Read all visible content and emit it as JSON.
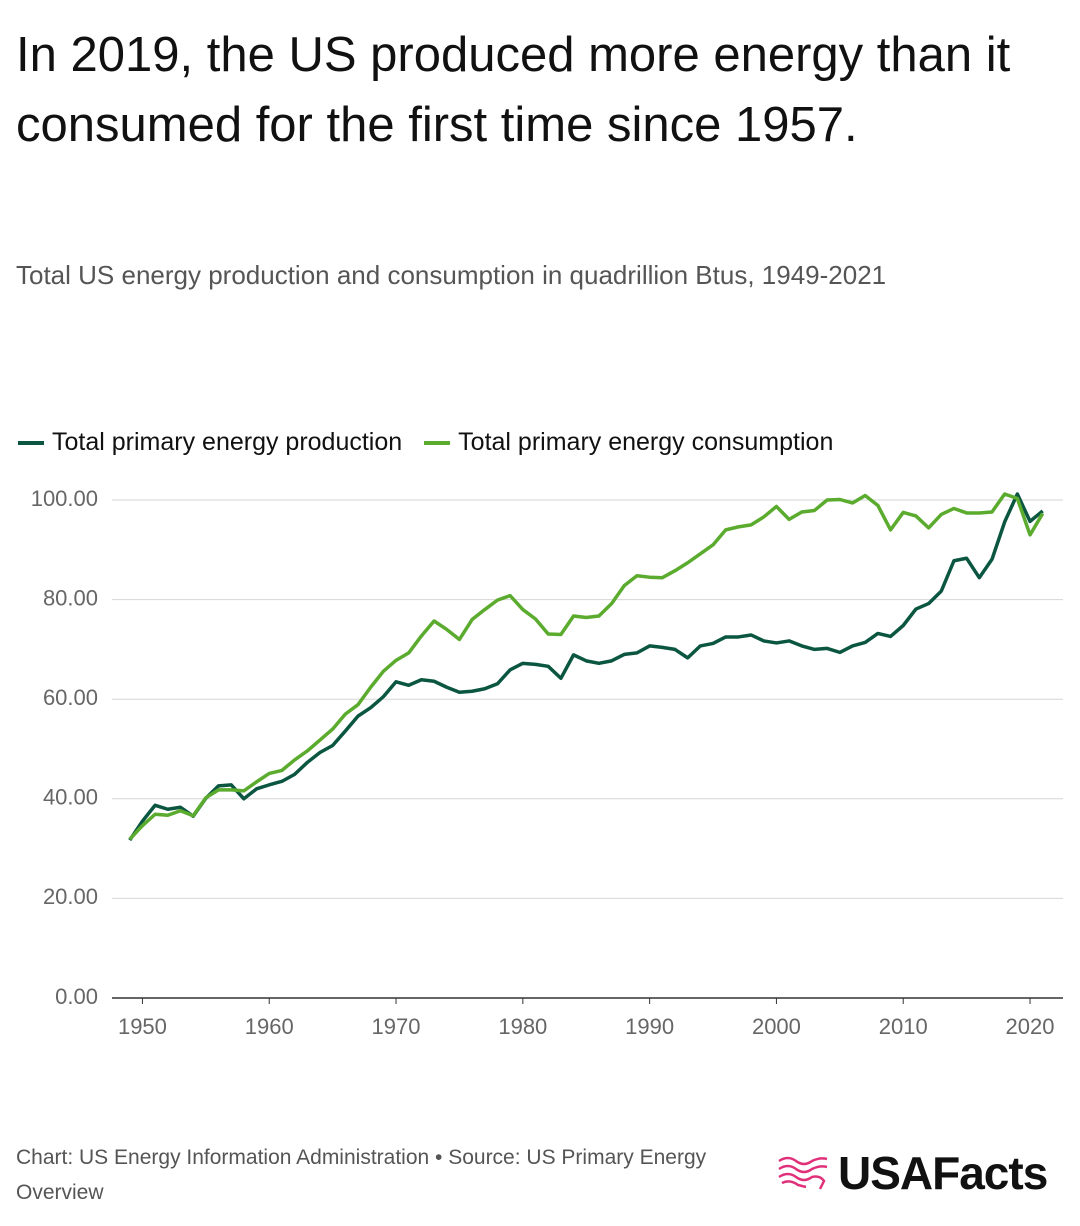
{
  "chart_data": {
    "type": "line",
    "title": "In 2019, the US produced more energy than it consumed for the first time since 1957.",
    "subtitle": "Total US energy production and consumption in quadrillion Btus, 1949-2021",
    "x": [
      1949,
      1950,
      1951,
      1952,
      1953,
      1954,
      1955,
      1956,
      1957,
      1958,
      1959,
      1960,
      1961,
      1962,
      1963,
      1964,
      1965,
      1966,
      1967,
      1968,
      1969,
      1970,
      1971,
      1972,
      1973,
      1974,
      1975,
      1976,
      1977,
      1978,
      1979,
      1980,
      1981,
      1982,
      1983,
      1984,
      1985,
      1986,
      1987,
      1988,
      1989,
      1990,
      1991,
      1992,
      1993,
      1994,
      1995,
      1996,
      1997,
      1998,
      1999,
      2000,
      2001,
      2002,
      2003,
      2004,
      2005,
      2006,
      2007,
      2008,
      2009,
      2010,
      2011,
      2012,
      2013,
      2014,
      2015,
      2016,
      2017,
      2018,
      2019,
      2020,
      2021
    ],
    "series": [
      {
        "name": "Total primary energy production",
        "color": "#0b5641",
        "values": [
          31.7,
          35.5,
          38.7,
          37.9,
          38.3,
          36.5,
          40.1,
          42.6,
          42.8,
          40.0,
          42.0,
          42.8,
          43.5,
          44.9,
          47.3,
          49.3,
          50.7,
          53.6,
          56.6,
          58.3,
          60.5,
          63.5,
          62.8,
          63.9,
          63.6,
          62.4,
          61.4,
          61.6,
          62.1,
          63.1,
          65.9,
          67.2,
          67.0,
          66.6,
          64.2,
          68.9,
          67.7,
          67.2,
          67.7,
          69.0,
          69.3,
          70.7,
          70.4,
          70.0,
          68.3,
          70.7,
          71.2,
          72.5,
          72.5,
          72.9,
          71.7,
          71.3,
          71.7,
          70.7,
          70.0,
          70.2,
          69.4,
          70.7,
          71.4,
          73.2,
          72.6,
          74.8,
          78.1,
          79.2,
          81.7,
          87.8,
          88.3,
          84.4,
          88.1,
          95.6,
          101.2,
          95.7,
          97.8
        ]
      },
      {
        "name": "Total primary energy consumption",
        "color": "#5aab2e",
        "values": [
          31.9,
          34.6,
          36.9,
          36.7,
          37.6,
          36.6,
          40.2,
          41.8,
          41.8,
          41.6,
          43.4,
          45.1,
          45.7,
          47.8,
          49.6,
          51.8,
          54.0,
          57.0,
          58.9,
          62.4,
          65.6,
          67.8,
          69.3,
          72.7,
          75.7,
          74.0,
          72.0,
          76.0,
          78.0,
          79.9,
          80.8,
          78.0,
          76.1,
          73.1,
          73.0,
          76.7,
          76.4,
          76.7,
          79.2,
          82.8,
          84.8,
          84.5,
          84.4,
          85.8,
          87.4,
          89.2,
          91.0,
          94.0,
          94.6,
          95.0,
          96.6,
          98.7,
          96.1,
          97.6,
          97.9,
          100.0,
          100.1,
          99.4,
          100.9,
          98.9,
          94.0,
          97.5,
          96.8,
          94.4,
          97.1,
          98.3,
          97.4,
          97.4,
          97.6,
          101.2,
          100.3,
          93.0,
          97.3
        ]
      }
    ],
    "xlim": [
      1947.6,
      2022.6
    ],
    "xticks": [
      1950,
      1960,
      1970,
      1980,
      1990,
      2000,
      2010,
      2020
    ],
    "ylim": [
      0,
      100
    ],
    "yticks": [
      {
        "value": 0,
        "label": "0.00"
      },
      {
        "value": 20,
        "label": "20.00"
      },
      {
        "value": 40,
        "label": "40.00"
      },
      {
        "value": 60,
        "label": "60.00"
      },
      {
        "value": 80,
        "label": "80.00"
      },
      {
        "value": 100,
        "label": "100.00"
      }
    ],
    "grid": true,
    "source": "Chart: US Energy Information Administration • Source: US Primary Energy Overview",
    "logo": "USAFacts"
  }
}
